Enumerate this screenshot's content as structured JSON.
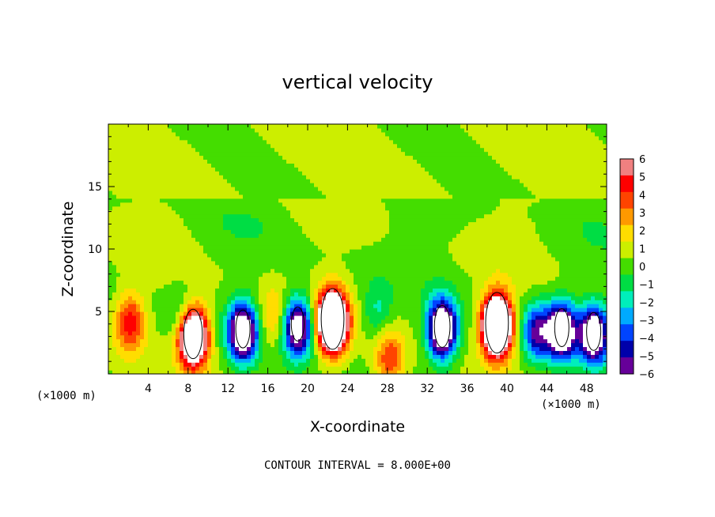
{
  "chart_data": {
    "type": "heatmap",
    "title": "vertical velocity",
    "xlabel": "X-coordinate",
    "ylabel": "Z-coordinate",
    "x_unit_label": "(×1000 m)",
    "xlim": [
      0,
      50
    ],
    "ylim": [
      0,
      20
    ],
    "x_ticks": [
      "4",
      "8",
      "12",
      "16",
      "20",
      "24",
      "28",
      "32",
      "36",
      "40",
      "44",
      "48"
    ],
    "y_ticks": [
      "5",
      "10",
      "15"
    ],
    "note": "CONTOUR INTERVAL = 8.000E+00",
    "colorbar": {
      "labels": [
        "6",
        "5",
        "4",
        "3",
        "2",
        "1",
        "0",
        "−1",
        "−2",
        "−3",
        "−4",
        "−5",
        "−6"
      ],
      "colors": [
        "#f08080",
        "#ff0000",
        "#ff4400",
        "#ff9900",
        "#ffdd00",
        "#ccee00",
        "#44dd00",
        "#00dd44",
        "#00eebb",
        "#00aaff",
        "#0044ff",
        "#0000aa",
        "#660099"
      ]
    },
    "features": [
      {
        "x": 2.2,
        "z": 4.2,
        "w": 4.8
      },
      {
        "x": 7.4,
        "z": 4.5,
        "w": -2.0
      },
      {
        "x": 8.5,
        "z": 3.0,
        "w": 13.0
      },
      {
        "x": 13.5,
        "z": 3.4,
        "w": -10.0
      },
      {
        "x": 16.5,
        "z": 4.5,
        "w": 2.5
      },
      {
        "x": 19.0,
        "z": 3.8,
        "w": -9.0
      },
      {
        "x": 22.5,
        "z": 4.2,
        "w": 16.0
      },
      {
        "x": 27.0,
        "z": 5.0,
        "w": -2.2
      },
      {
        "x": 28.2,
        "z": 1.2,
        "w": 4.0
      },
      {
        "x": 33.5,
        "z": 3.6,
        "w": -11.0
      },
      {
        "x": 39.0,
        "z": 3.9,
        "w": 16.0
      },
      {
        "x": 43.0,
        "z": 3.4,
        "w": -6.0
      },
      {
        "x": 45.5,
        "z": 3.5,
        "w": -10.0
      },
      {
        "x": 48.7,
        "z": 3.2,
        "w": -10.0
      }
    ]
  }
}
